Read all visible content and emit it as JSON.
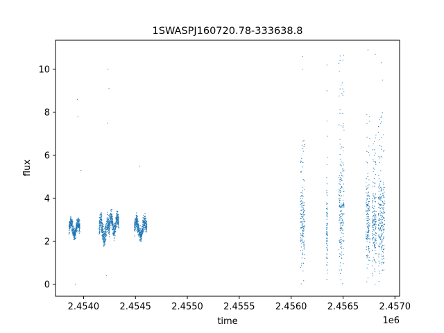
{
  "chart_data": {
    "type": "scatter",
    "title": "1SWASPJ160720.78-333638.8",
    "xlabel": "time",
    "ylabel": "flux",
    "x_offset_label": "1e6",
    "xlim": [
      2453730,
      2457045
    ],
    "ylim": [
      -0.55,
      11.35
    ],
    "x_ticks": [
      2.454,
      2.4545,
      2.455,
      2.4555,
      2.456,
      2.4565,
      2.457
    ],
    "x_tick_labels": [
      "2.4540",
      "2.4545",
      "2.4550",
      "2.4555",
      "2.4560",
      "2.4565",
      "2.4570"
    ],
    "y_ticks": [
      0,
      2,
      4,
      6,
      8,
      10
    ],
    "y_tick_labels": [
      "0",
      "2",
      "4",
      "6",
      "8",
      "10"
    ],
    "grid": false,
    "marker_color": "#1f77b4",
    "series": [
      {
        "segments": [
          {
            "x_start": 2453860,
            "x_end": 2453965,
            "y_low": 1.8,
            "y_high": 3.4,
            "center": 2.6
          },
          {
            "x_start": 2454150,
            "x_end": 2454250,
            "y_low": 1.3,
            "y_high": 3.6,
            "center": 2.5
          },
          {
            "x_start": 2454250,
            "x_end": 2454340,
            "y_low": 1.6,
            "y_high": 3.6,
            "center": 2.8
          },
          {
            "x_start": 2454490,
            "x_end": 2454610,
            "y_low": 1.7,
            "y_high": 3.5,
            "center": 2.6
          },
          {
            "x_start": 2456090,
            "x_end": 2456130,
            "y_low": 0.0,
            "y_high": 7.0,
            "center": 3.0
          },
          {
            "x_start": 2456340,
            "x_end": 2456350,
            "y_low": 0.0,
            "y_high": 6.9,
            "center": 2.5
          },
          {
            "x_start": 2456460,
            "x_end": 2456510,
            "y_low": 0.0,
            "y_high": 10.9,
            "center": 3.5
          },
          {
            "x_start": 2456720,
            "x_end": 2456760,
            "y_low": 0.0,
            "y_high": 8.0,
            "center": 3.0
          },
          {
            "x_start": 2456780,
            "x_end": 2456820,
            "y_low": 0.0,
            "y_high": 7.0,
            "center": 2.8
          },
          {
            "x_start": 2456840,
            "x_end": 2456900,
            "y_low": 0.0,
            "y_high": 8.0,
            "center": 3.0
          }
        ],
        "outliers": [
          {
            "x": 2453920,
            "y": 0.0
          },
          {
            "x": 2453940,
            "y": 8.6
          },
          {
            "x": 2453945,
            "y": 7.8
          },
          {
            "x": 2453975,
            "y": 5.3
          },
          {
            "x": 2454235,
            "y": 10.0
          },
          {
            "x": 2454245,
            "y": 9.1
          },
          {
            "x": 2454230,
            "y": 7.5
          },
          {
            "x": 2454220,
            "y": 0.4
          },
          {
            "x": 2454540,
            "y": 5.5
          },
          {
            "x": 2456110,
            "y": 10.6
          },
          {
            "x": 2456110,
            "y": 10.0
          },
          {
            "x": 2456345,
            "y": 10.2
          },
          {
            "x": 2456345,
            "y": 9.0
          },
          {
            "x": 2456345,
            "y": 7.6
          },
          {
            "x": 2456740,
            "y": 10.9
          },
          {
            "x": 2456810,
            "y": 10.7
          },
          {
            "x": 2456870,
            "y": 10.3
          },
          {
            "x": 2456880,
            "y": 9.5
          }
        ]
      }
    ]
  }
}
